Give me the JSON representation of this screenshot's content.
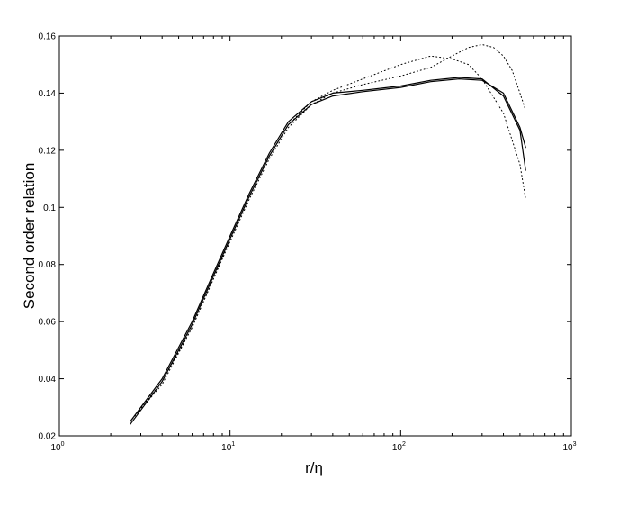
{
  "chart_data": {
    "type": "line",
    "xscale": "log",
    "xlim": [
      1,
      1000
    ],
    "ylim": [
      0.02,
      0.16
    ],
    "grid": false,
    "xlabel": "r/η",
    "ylabel": "Second order relation",
    "y_ticks": [
      0.02,
      0.04,
      0.06,
      0.08,
      0.1,
      0.12,
      0.14,
      0.16
    ],
    "y_tick_labels": [
      "0.02",
      "0.04",
      "0.06",
      "0.08",
      "0.1",
      "0.12",
      "0.14",
      "0.16"
    ],
    "x_ticks": [
      1,
      10,
      100,
      1000
    ],
    "x_tick_labels": [
      {
        "base": "10",
        "exp": "0"
      },
      {
        "base": "10",
        "exp": "1"
      },
      {
        "base": "10",
        "exp": "2"
      },
      {
        "base": "10",
        "exp": "3"
      }
    ],
    "series": [
      {
        "style": "solid",
        "x": [
          2.6,
          4,
          6,
          8,
          10,
          13,
          17,
          22,
          30,
          40,
          60,
          100,
          150,
          220,
          300,
          400,
          500,
          540
        ],
        "y": [
          0.025,
          0.04,
          0.06,
          0.077,
          0.09,
          0.105,
          0.119,
          0.13,
          0.137,
          0.14,
          0.141,
          0.1425,
          0.1445,
          0.1455,
          0.145,
          0.139,
          0.127,
          0.113
        ]
      },
      {
        "style": "solid",
        "x": [
          2.6,
          4,
          6,
          8,
          10,
          13,
          17,
          22,
          30,
          40,
          60,
          100,
          150,
          220,
          300,
          400,
          500,
          540
        ],
        "y": [
          0.024,
          0.039,
          0.059,
          0.076,
          0.089,
          0.104,
          0.118,
          0.129,
          0.136,
          0.139,
          0.1405,
          0.142,
          0.144,
          0.145,
          0.1445,
          0.14,
          0.128,
          0.121
        ]
      },
      {
        "style": "dotted",
        "x": [
          2.6,
          4,
          6,
          8,
          10,
          13,
          17,
          22,
          30,
          40,
          60,
          100,
          150,
          200,
          250,
          300,
          400,
          500,
          540
        ],
        "y": [
          0.025,
          0.038,
          0.058,
          0.075,
          0.089,
          0.104,
          0.118,
          0.129,
          0.137,
          0.141,
          0.145,
          0.15,
          0.153,
          0.152,
          0.15,
          0.145,
          0.133,
          0.115,
          0.103
        ]
      },
      {
        "style": "dotted",
        "x": [
          2.6,
          4,
          6,
          8,
          10,
          13,
          17,
          22,
          30,
          40,
          60,
          100,
          150,
          200,
          250,
          300,
          350,
          400,
          450,
          500,
          540
        ],
        "y": [
          0.025,
          0.039,
          0.058,
          0.075,
          0.088,
          0.103,
          0.117,
          0.128,
          0.136,
          0.14,
          0.143,
          0.146,
          0.149,
          0.153,
          0.156,
          0.157,
          0.156,
          0.153,
          0.148,
          0.14,
          0.134
        ]
      }
    ]
  }
}
